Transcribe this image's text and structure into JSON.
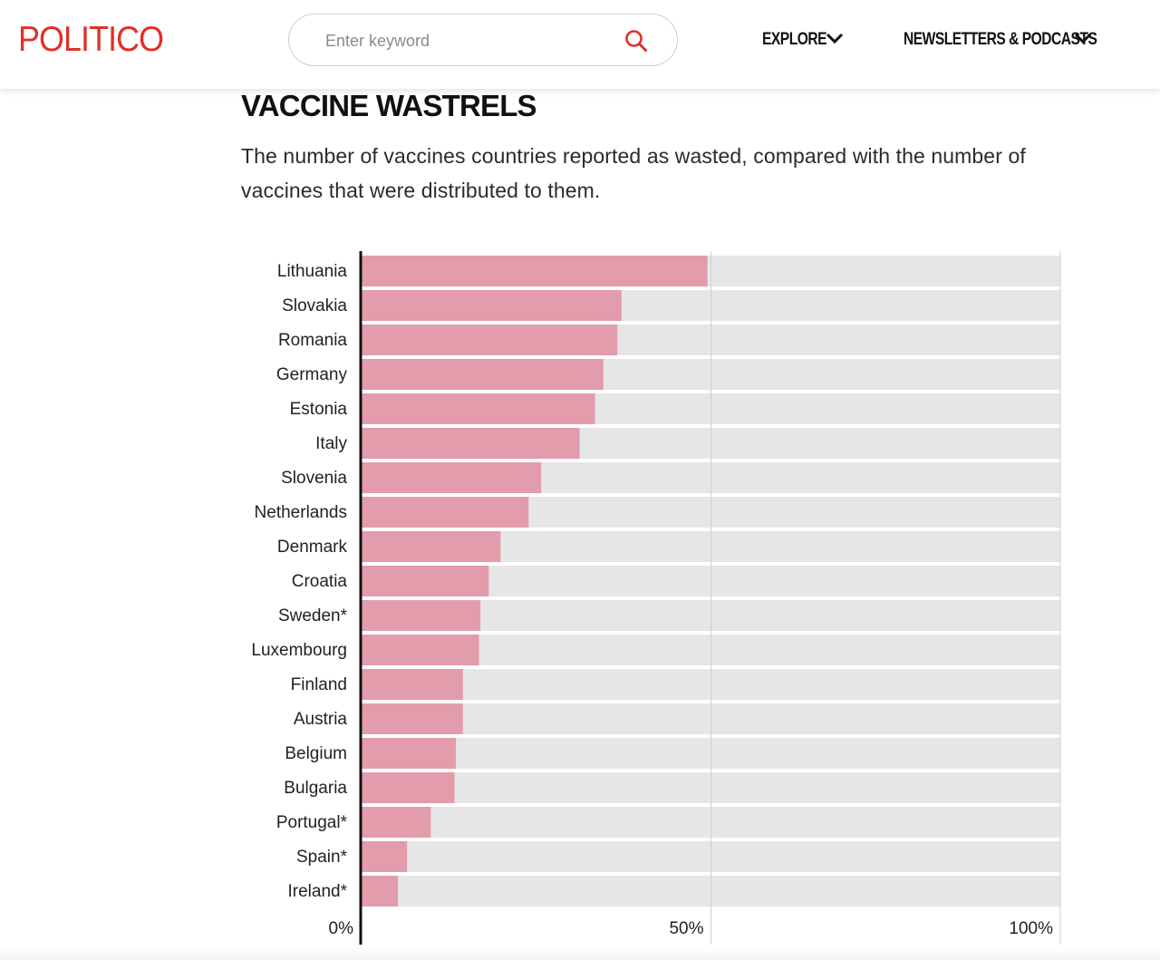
{
  "header": {
    "logo": "POLITICO",
    "search": {
      "placeholder": "Enter keyword"
    },
    "nav": {
      "explore": "EXPLORE",
      "newsletters": "NEWSLETTERS & PODCASTS"
    }
  },
  "chart_data": {
    "type": "bar",
    "orientation": "horizontal",
    "title": "VACCINE WASTRELS",
    "subtitle": "The number of vaccines countries reported as wasted, compared with the number of vaccines that were distributed to them.",
    "categories": [
      "Lithuania",
      "Slovakia",
      "Romania",
      "Germany",
      "Estonia",
      "Italy",
      "Slovenia",
      "Netherlands",
      "Denmark",
      "Croatia",
      "Sweden*",
      "Luxembourg",
      "Finland",
      "Austria",
      "Belgium",
      "Bulgaria",
      "Portugal*",
      "Spain*",
      "Ireland*"
    ],
    "values": [
      49.5,
      37.2,
      36.6,
      34.6,
      33.4,
      31.2,
      25.7,
      23.9,
      19.9,
      18.2,
      17.0,
      16.8,
      14.5,
      14.5,
      13.5,
      13.3,
      9.9,
      6.5,
      5.2
    ],
    "xlim": [
      0,
      100
    ],
    "xticks": [
      "0%",
      "50%",
      "100%"
    ],
    "xtick_values": [
      0,
      50,
      100
    ],
    "bar_color": "#e29cab",
    "track_color": "#e6e6e6",
    "grid": true
  }
}
